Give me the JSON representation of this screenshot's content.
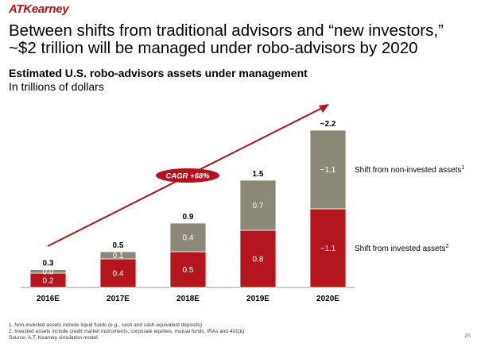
{
  "header": {
    "logo": "ATKearney",
    "headline": "Between shifts from traditional advisors and “new investors,” ~$2 trillion will be managed under robo-advisors by 2020",
    "subtitle": "Estimated U.S. robo-advisors assets under management",
    "units": "In trillions of dollars"
  },
  "chart_data": {
    "type": "bar",
    "stacked": true,
    "categories": [
      "2016E",
      "2017E",
      "2018E",
      "2019E",
      "2020E"
    ],
    "series": [
      {
        "name": "Shift from invested assets",
        "footnote": "2",
        "color": "#b5161e",
        "values": [
          0.2,
          0.4,
          0.5,
          0.8,
          1.1
        ],
        "labels": [
          "0.2",
          "0.4",
          "0.5",
          "0.8",
          "~1.1"
        ]
      },
      {
        "name": "Shift from non-invested assets",
        "footnote": "1",
        "color": "#8c8878",
        "values": [
          0.05,
          0.1,
          0.4,
          0.7,
          1.1
        ],
        "labels": [
          "0.0",
          "0.1",
          "0.4",
          "0.7",
          "~1.1"
        ]
      }
    ],
    "totals": [
      "0.3",
      "0.5",
      "0.9",
      "1.5",
      "~2.2"
    ],
    "annotation": "CAGR +68%",
    "ylim": [
      0,
      2.2
    ],
    "grid": false,
    "legend": "right"
  },
  "footnotes": [
    "1. Non-invested assets include liquid funds (e.g., cash and cash equivalent deposits)",
    "2. Invested assets include credit market instruments, corporate equities, mutual funds, IRAs and 401(k)",
    "Source: A.T. Kearney simulation model"
  ],
  "page_number": "26",
  "colors": {
    "brand": "#b3121c",
    "invested": "#b5161e",
    "non_invested": "#8c8878",
    "arrow": "#b3121c"
  }
}
